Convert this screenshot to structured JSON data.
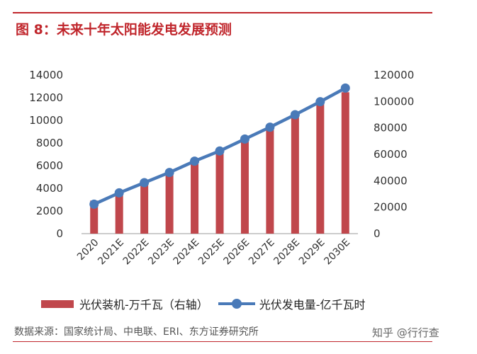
{
  "header": {
    "title": "图 8：未来十年太阳能发电发展预测"
  },
  "colors": {
    "accent": "#c0262c",
    "bar": "#c0474c",
    "line": "#4a7ab8"
  },
  "chart_data": {
    "type": "bar",
    "categories": [
      "2020",
      "2021E",
      "2022E",
      "2023E",
      "2024E",
      "2025E",
      "2026E",
      "2027E",
      "2028E",
      "2029E",
      "2030E"
    ],
    "series": [
      {
        "name": "光伏装机-万千瓦（右轴）",
        "type": "bar",
        "axis": "right",
        "values": [
          25000,
          31000,
          38500,
          46500,
          54500,
          62500,
          71500,
          80500,
          89500,
          98500,
          107000
        ]
      },
      {
        "name": "光伏发电量-亿千瓦时",
        "type": "line",
        "axis": "left",
        "values": [
          2600,
          3600,
          4500,
          5400,
          6400,
          7300,
          8350,
          9400,
          10500,
          11650,
          12850
        ]
      }
    ],
    "ylim_left": [
      0,
      14000
    ],
    "yticks_left": [
      "0",
      "2000",
      "4000",
      "6000",
      "8000",
      "10000",
      "12000",
      "14000"
    ],
    "ylim_right": [
      0,
      120000
    ],
    "yticks_right": [
      "0",
      "20000",
      "40000",
      "60000",
      "80000",
      "100000",
      "120000"
    ],
    "legend_position": "bottom"
  },
  "source": "数据来源：国家统计局、中电联、ERI、东方证券研究所",
  "watermark": "知乎 @行行查"
}
